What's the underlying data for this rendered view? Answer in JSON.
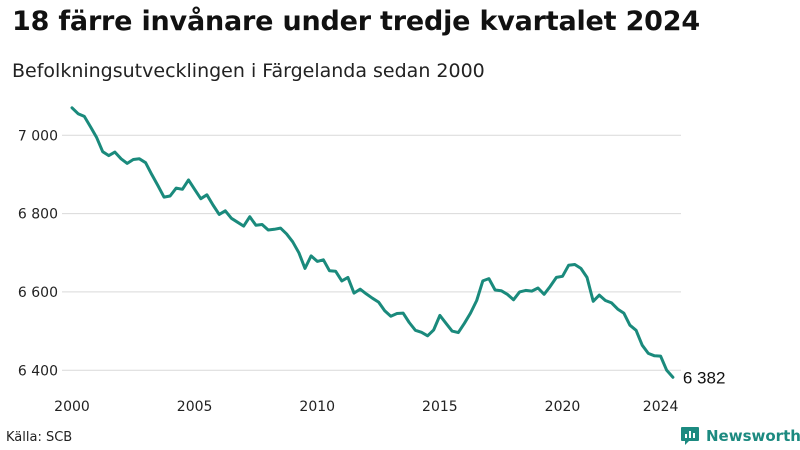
{
  "title": "18 färre invånare under tredje kvartalet 2024",
  "subtitle": "Befolkningsutvecklingen i Färgelanda sedan 2000",
  "source": "Källa: SCB",
  "brand": {
    "name": "Newsworthy",
    "icon": "newsworthy-logo-icon",
    "color": "#1c8a80"
  },
  "chart_data": {
    "type": "line",
    "line_color": "#1a8a7c",
    "grid": true,
    "xlim": [
      2000,
      2024.75
    ],
    "ylim": [
      6370,
      7090
    ],
    "x_ticks": [
      {
        "value": 2000,
        "label": "2000"
      },
      {
        "value": 2005,
        "label": "2005"
      },
      {
        "value": 2010,
        "label": "2010"
      },
      {
        "value": 2015,
        "label": "2015"
      },
      {
        "value": 2020,
        "label": "2020"
      },
      {
        "value": 2024,
        "label": "2024"
      }
    ],
    "y_ticks": [
      {
        "value": 6400,
        "label": "6 400"
      },
      {
        "value": 6600,
        "label": "6 600"
      },
      {
        "value": 6800,
        "label": "6 800"
      },
      {
        "value": 7000,
        "label": "7 000"
      }
    ],
    "end_label": "6 382",
    "x": [
      2000.0,
      2000.25,
      2000.5,
      2000.75,
      2001.0,
      2001.25,
      2001.5,
      2001.75,
      2002.0,
      2002.25,
      2002.5,
      2002.75,
      2003.0,
      2003.25,
      2003.5,
      2003.75,
      2004.0,
      2004.25,
      2004.5,
      2004.75,
      2005.0,
      2005.25,
      2005.5,
      2005.75,
      2006.0,
      2006.25,
      2006.5,
      2006.75,
      2007.0,
      2007.25,
      2007.5,
      2007.75,
      2008.0,
      2008.25,
      2008.5,
      2008.75,
      2009.0,
      2009.25,
      2009.5,
      2009.75,
      2010.0,
      2010.25,
      2010.5,
      2010.75,
      2011.0,
      2011.25,
      2011.5,
      2011.75,
      2012.0,
      2012.25,
      2012.5,
      2012.75,
      2013.0,
      2013.25,
      2013.5,
      2013.75,
      2014.0,
      2014.25,
      2014.5,
      2014.75,
      2015.0,
      2015.25,
      2015.5,
      2015.75,
      2016.0,
      2016.25,
      2016.5,
      2016.75,
      2017.0,
      2017.25,
      2017.5,
      2017.75,
      2018.0,
      2018.25,
      2018.5,
      2018.75,
      2019.0,
      2019.25,
      2019.5,
      2019.75,
      2020.0,
      2020.25,
      2020.5,
      2020.75,
      2021.0,
      2021.25,
      2021.5,
      2021.75,
      2022.0,
      2022.25,
      2022.5,
      2022.75,
      2023.0,
      2023.25,
      2023.5,
      2023.75,
      2024.0,
      2024.25,
      2024.5
    ],
    "y": [
      7070,
      7055,
      7048,
      7022,
      6995,
      6958,
      6948,
      6957,
      6940,
      6928,
      6938,
      6940,
      6930,
      6900,
      6872,
      6842,
      6845,
      6865,
      6862,
      6886,
      6862,
      6838,
      6848,
      6822,
      6798,
      6807,
      6788,
      6778,
      6768,
      6792,
      6770,
      6772,
      6758,
      6760,
      6763,
      6748,
      6728,
      6700,
      6660,
      6692,
      6678,
      6682,
      6654,
      6653,
      6628,
      6637,
      6597,
      6607,
      6595,
      6584,
      6574,
      6552,
      6538,
      6545,
      6546,
      6522,
      6502,
      6497,
      6488,
      6503,
      6540,
      6520,
      6500,
      6496,
      6520,
      6546,
      6578,
      6628,
      6634,
      6605,
      6603,
      6594,
      6580,
      6600,
      6604,
      6602,
      6610,
      6594,
      6614,
      6637,
      6640,
      6668,
      6670,
      6660,
      6637,
      6576,
      6592,
      6578,
      6572,
      6556,
      6546,
      6515,
      6502,
      6464,
      6443,
      6437,
      6436,
      6400,
      6382
    ]
  }
}
